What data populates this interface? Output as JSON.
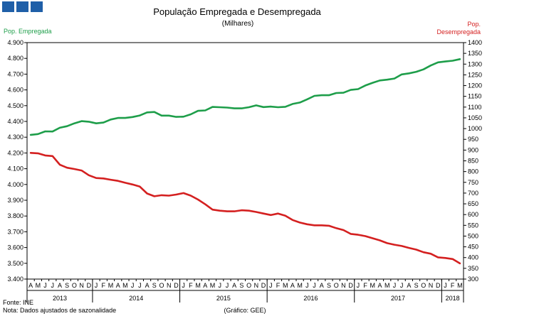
{
  "header": {
    "logo": "gee-logo"
  },
  "chart_data": {
    "type": "line",
    "title": "População Empregada e Desempregada",
    "subtitle": "(Milhares)",
    "y_left_label": "Pop. Empregada",
    "y_right_label_line1": "Pop.",
    "y_right_label_line2": "Desempregada",
    "ylim_left": [
      3400,
      4900
    ],
    "ylim_right": [
      300,
      1400
    ],
    "y_left_ticks": [
      "3.400",
      "3.500",
      "3.600",
      "3.700",
      "3.800",
      "3.900",
      "4.000",
      "4.100",
      "4.200",
      "4.300",
      "4.400",
      "4.500",
      "4.600",
      "4.700",
      "4.800",
      "4.900"
    ],
    "y_right_ticks": [
      "300",
      "350",
      "400",
      "450",
      "500",
      "550",
      "600",
      "650",
      "700",
      "750",
      "800",
      "850",
      "900",
      "950",
      "1000",
      "1050",
      "1100",
      "1150",
      "1200",
      "1250",
      "1300",
      "1350",
      "1400"
    ],
    "months": [
      "A",
      "M",
      "J",
      "J",
      "A",
      "S",
      "O",
      "N",
      "D",
      "J",
      "F",
      "M",
      "A",
      "M",
      "J",
      "J",
      "A",
      "S",
      "O",
      "N",
      "D",
      "J",
      "F",
      "M",
      "A",
      "M",
      "J",
      "J",
      "A",
      "S",
      "O",
      "N",
      "D",
      "J",
      "F",
      "M",
      "A",
      "M",
      "J",
      "J",
      "A",
      "S",
      "O",
      "N",
      "D",
      "J",
      "F",
      "M",
      "A",
      "M",
      "J",
      "J",
      "A",
      "S",
      "O",
      "N",
      "D",
      "J",
      "F",
      "M"
    ],
    "years": [
      "2013",
      "2014",
      "2015",
      "2016",
      "2017",
      "2018"
    ],
    "series": [
      {
        "name": "Pop. Empregada",
        "axis": "left",
        "color": "#1e9e4a",
        "values": [
          4315,
          4320,
          4337,
          4336,
          4360,
          4370,
          4388,
          4402,
          4398,
          4388,
          4393,
          4412,
          4422,
          4422,
          4428,
          4438,
          4457,
          4460,
          4437,
          4437,
          4429,
          4430,
          4445,
          4467,
          4470,
          4492,
          4490,
          4488,
          4483,
          4483,
          4490,
          4502,
          4491,
          4494,
          4490,
          4493,
          4511,
          4520,
          4540,
          4562,
          4566,
          4566,
          4580,
          4582,
          4600,
          4605,
          4628,
          4645,
          4660,
          4665,
          4672,
          4698,
          4705,
          4715,
          4730,
          4755,
          4775,
          4780,
          4785,
          4795
        ]
      },
      {
        "name": "Pop. Desempregada",
        "axis": "right",
        "color": "#d42020",
        "values": [
          887,
          885,
          875,
          872,
          832,
          818,
          812,
          805,
          783,
          770,
          768,
          762,
          757,
          748,
          740,
          730,
          698,
          685,
          690,
          688,
          693,
          700,
          688,
          670,
          648,
          623,
          618,
          615,
          615,
          620,
          618,
          612,
          605,
          598,
          605,
          595,
          575,
          563,
          555,
          550,
          550,
          548,
          537,
          528,
          510,
          506,
          500,
          490,
          480,
          467,
          460,
          454,
          445,
          437,
          425,
          418,
          401,
          398,
          393,
          373
        ]
      }
    ]
  },
  "footer": {
    "source": "Fonte: INE",
    "note": "Nota: Dados ajustados de sazonalidade",
    "credit": "(Gráfico: GEE)"
  }
}
